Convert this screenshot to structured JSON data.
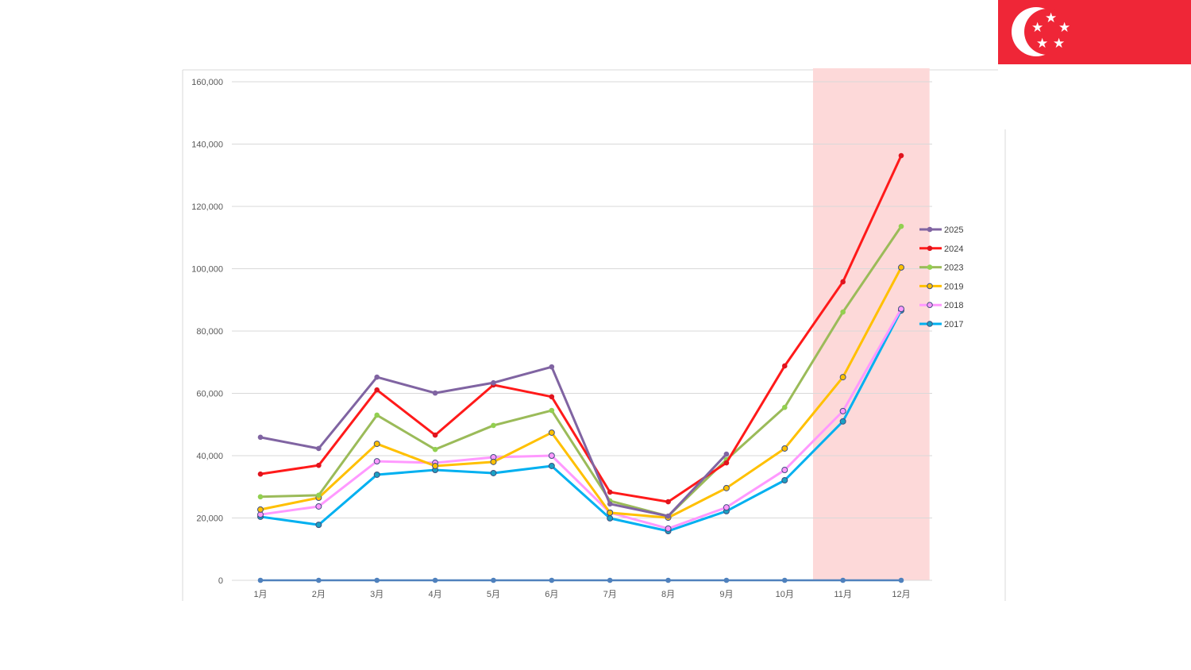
{
  "flag": {
    "name": "Singapore flag",
    "colors": {
      "red": "#ef2637",
      "white": "#ffffff"
    }
  },
  "chart_data": {
    "type": "line",
    "title": "",
    "xlabel": "",
    "ylabel": "",
    "categories": [
      "1月",
      "2月",
      "3月",
      "4月",
      "5月",
      "6月",
      "7月",
      "8月",
      "9月",
      "10月",
      "11月",
      "12月"
    ],
    "y_ticks": [
      "0",
      "20,000",
      "40,000",
      "60,000",
      "80,000",
      "100,000",
      "120,000",
      "140,000",
      "160,000"
    ],
    "ylim": [
      0,
      160000
    ],
    "grid": true,
    "legend_position": "right",
    "highlight_range": [
      "11月",
      "12月"
    ],
    "highlight_color": "#fdd9d9",
    "series": [
      {
        "name": "2025",
        "color": "#8064a2",
        "marker": "#8064a2",
        "values": [
          45900,
          42300,
          65200,
          60100,
          63400,
          68500,
          24500,
          20600,
          40500,
          null,
          null,
          null
        ]
      },
      {
        "name": "2024",
        "color": "#ff1a1a",
        "marker": "#e0141e",
        "values": [
          34100,
          36900,
          61100,
          46600,
          62700,
          58900,
          28300,
          25200,
          37700,
          68800,
          95800,
          136300
        ]
      },
      {
        "name": "2023",
        "color": "#9bbb59",
        "marker": "#92d050",
        "values": [
          26800,
          27300,
          53000,
          42000,
          49700,
          54500,
          25500,
          20600,
          38700,
          55500,
          86100,
          113600
        ]
      },
      {
        "name": "2019",
        "color": "#ffc000",
        "marker": "#ffc000",
        "values": [
          22700,
          26500,
          43800,
          36700,
          38000,
          47400,
          21700,
          20100,
          29600,
          42300,
          65200,
          100400
        ]
      },
      {
        "name": "2018",
        "color": "#ff99ff",
        "marker": "#ff99ff",
        "values": [
          21100,
          23700,
          38200,
          37700,
          39500,
          40000,
          21700,
          16600,
          23400,
          35400,
          54300,
          87100
        ]
      },
      {
        "name": "2017",
        "color": "#00b0f0",
        "marker": "#1ba1c4",
        "values": [
          20400,
          17800,
          33900,
          35400,
          34400,
          36700,
          19900,
          15800,
          22200,
          32100,
          51000,
          86600
        ]
      },
      {
        "name": "",
        "color": "#4f81bd",
        "marker": "#4f81bd",
        "values": [
          0,
          0,
          0,
          0,
          0,
          0,
          0,
          0,
          0,
          0,
          0,
          0
        ]
      }
    ]
  }
}
